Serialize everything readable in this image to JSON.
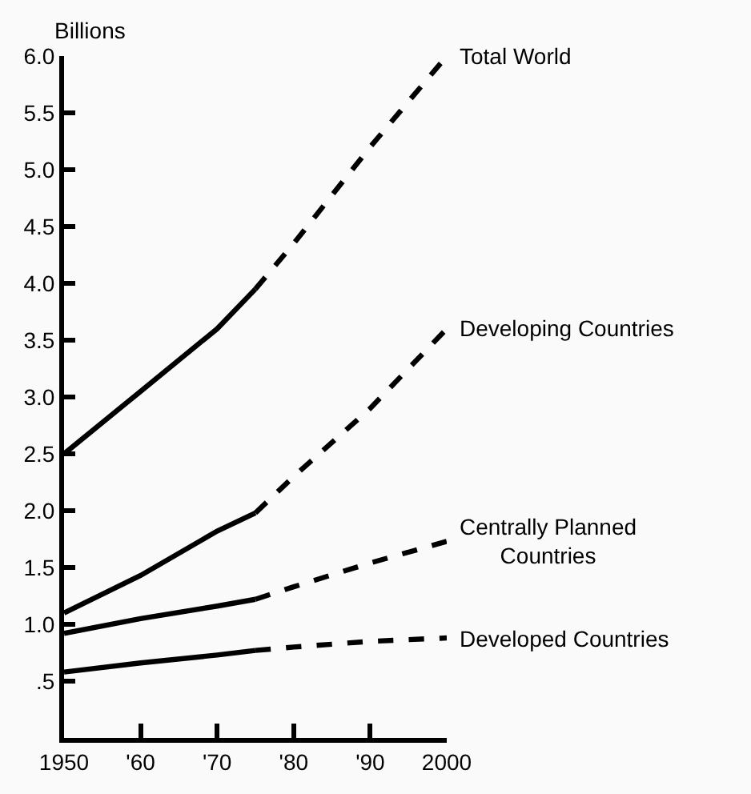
{
  "chart_data": {
    "type": "line",
    "ylabel": "Billions",
    "xlim": [
      1950,
      2000
    ],
    "xticks": [
      1950,
      {
        "value": 1960,
        "label": "'60"
      },
      {
        "value": 1970,
        "label": "'70"
      },
      {
        "value": 1980,
        "label": "'80"
      },
      {
        "value": 1990,
        "label": "'90"
      },
      2000
    ],
    "ylim": [
      0,
      6.0
    ],
    "yticks": [
      {
        "value": 0.5,
        "label": ".5"
      },
      {
        "value": 1.0,
        "label": "1.0"
      },
      {
        "value": 1.5,
        "label": "1.5"
      },
      {
        "value": 2.0,
        "label": "2.0"
      },
      {
        "value": 2.5,
        "label": "2.5"
      },
      {
        "value": 3.0,
        "label": "3.0"
      },
      {
        "value": 3.5,
        "label": "3.5"
      },
      {
        "value": 4.0,
        "label": "4.0"
      },
      {
        "value": 4.5,
        "label": "4.5"
      },
      {
        "value": 5.0,
        "label": "5.0"
      },
      {
        "value": 5.5,
        "label": "5.5"
      },
      {
        "value": 6.0,
        "label": "6.0"
      }
    ],
    "legend": false,
    "marker": "none",
    "series": [
      {
        "color": "#000000",
        "line_style": "solid",
        "x": [
          1950,
          1960,
          1970,
          1975
        ],
        "values": [
          2.5,
          3.05,
          3.6,
          3.95
        ]
      },
      {
        "name": "Total World",
        "color": "#000000",
        "line_style": "dashed",
        "x": [
          1975,
          1980,
          1990,
          2000
        ],
        "values": [
          3.95,
          4.35,
          5.2,
          6.0
        ]
      },
      {
        "color": "#000000",
        "line_style": "solid",
        "x": [
          1950,
          1960,
          1970,
          1975
        ],
        "values": [
          1.1,
          1.43,
          1.82,
          1.98
        ]
      },
      {
        "name": "Developing Countries",
        "color": "#000000",
        "line_style": "dashed",
        "x": [
          1975,
          1980,
          1990,
          2000
        ],
        "values": [
          1.98,
          2.3,
          2.9,
          3.6
        ]
      },
      {
        "color": "#000000",
        "line_style": "solid",
        "x": [
          1950,
          1960,
          1970,
          1975
        ],
        "values": [
          0.92,
          1.05,
          1.16,
          1.22
        ]
      },
      {
        "name": "Centrally Planned Countries",
        "color": "#000000",
        "line_style": "dashed",
        "x": [
          1975,
          1980,
          1990,
          2000
        ],
        "values": [
          1.22,
          1.33,
          1.54,
          1.73
        ]
      },
      {
        "color": "#000000",
        "line_style": "solid",
        "x": [
          1950,
          1960,
          1970,
          1975
        ],
        "values": [
          0.58,
          0.66,
          0.73,
          0.77
        ]
      },
      {
        "name": "Developed Countries",
        "color": "#000000",
        "line_style": "dashed",
        "x": [
          1975,
          1980,
          1990,
          2000
        ],
        "values": [
          0.77,
          0.8,
          0.85,
          0.88
        ]
      }
    ]
  }
}
